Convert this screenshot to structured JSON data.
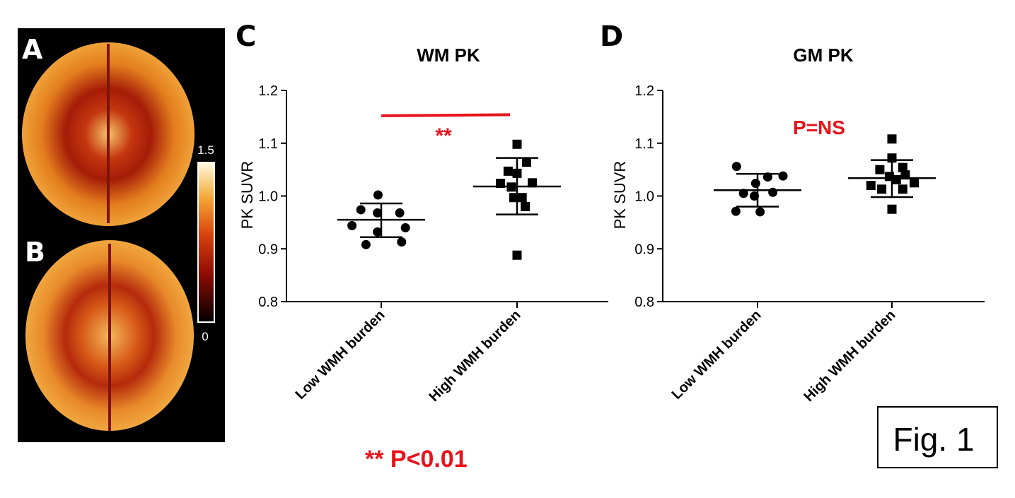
{
  "figure_label": "Fig. 1",
  "footnote": "** P<0.01",
  "panels": {
    "a": "A",
    "b": "B",
    "c": "C",
    "d": "D"
  },
  "colorbar": {
    "max_label": "1.5",
    "min_label": "0",
    "colormap": "hot"
  },
  "colors": {
    "significance": "#e8121b",
    "data": "#000000"
  },
  "chart_data": [
    {
      "type": "scatter",
      "panel": "C",
      "title": "WM PK",
      "ylabel": "PK SUVR",
      "xlabel": "",
      "ylim": [
        0.8,
        1.2
      ],
      "yticks": [
        0.8,
        0.9,
        1.0,
        1.1,
        1.2
      ],
      "ytick_labels": [
        "0.8",
        "0.9",
        "1.0",
        "1.1",
        "1.2"
      ],
      "categories": [
        "Low WMH burden",
        "High WMH burden"
      ],
      "series": [
        {
          "name": "Low WMH burden",
          "marker": "circle",
          "points": [
            {
              "dx": -0.05,
              "y": 1.002
            },
            {
              "dx": -0.32,
              "y": 0.974
            },
            {
              "dx": -0.06,
              "y": 0.968
            },
            {
              "dx": 0.29,
              "y": 0.968
            },
            {
              "dx": -0.46,
              "y": 0.944
            },
            {
              "dx": 0.38,
              "y": 0.94
            },
            {
              "dx": -0.06,
              "y": 0.932
            },
            {
              "dx": 0.32,
              "y": 0.913
            },
            {
              "dx": -0.24,
              "y": 0.908
            }
          ],
          "mean": 0.955,
          "err_low": 0.922,
          "err_high": 0.986
        },
        {
          "name": "High WMH burden",
          "marker": "square",
          "points": [
            {
              "dx": 0.0,
              "y": 1.098
            },
            {
              "dx": 0.15,
              "y": 1.064
            },
            {
              "dx": -0.14,
              "y": 1.047
            },
            {
              "dx": 0.0,
              "y": 1.043
            },
            {
              "dx": -0.26,
              "y": 1.024
            },
            {
              "dx": 0.24,
              "y": 1.025
            },
            {
              "dx": -0.09,
              "y": 1.017
            },
            {
              "dx": -0.05,
              "y": 0.997
            },
            {
              "dx": 0.08,
              "y": 0.997
            },
            {
              "dx": 0.13,
              "y": 0.98
            },
            {
              "dx": 0.0,
              "y": 0.888
            }
          ],
          "mean": 1.018,
          "err_low": 0.965,
          "err_high": 1.072
        }
      ],
      "annotation": {
        "text": "**",
        "line_y_start": 1.152,
        "line_y_end": 1.154
      }
    },
    {
      "type": "scatter",
      "panel": "D",
      "title": "GM PK",
      "ylabel": "PK SUVR",
      "xlabel": "",
      "ylim": [
        0.8,
        1.2
      ],
      "yticks": [
        0.8,
        0.9,
        1.0,
        1.1,
        1.2
      ],
      "ytick_labels": [
        "0.8",
        "0.9",
        "1.0",
        "1.1",
        "1.2"
      ],
      "categories": [
        "Low WMH burden",
        "High WMH burden"
      ],
      "series": [
        {
          "name": "Low WMH burden",
          "marker": "circle",
          "points": [
            {
              "dx": -0.33,
              "y": 1.056
            },
            {
              "dx": 0.4,
              "y": 1.038
            },
            {
              "dx": 0.16,
              "y": 1.036
            },
            {
              "dx": -0.03,
              "y": 1.024
            },
            {
              "dx": -0.22,
              "y": 1.005
            },
            {
              "dx": 0.24,
              "y": 1.007
            },
            {
              "dx": -0.05,
              "y": 1.0
            },
            {
              "dx": -0.34,
              "y": 0.971
            },
            {
              "dx": 0.04,
              "y": 0.97
            }
          ],
          "mean": 1.011,
          "err_low": 0.98,
          "err_high": 1.042
        },
        {
          "name": "High WMH burden",
          "marker": "square",
          "points": [
            {
              "dx": 0.0,
              "y": 1.108
            },
            {
              "dx": 0.0,
              "y": 1.072
            },
            {
              "dx": -0.19,
              "y": 1.05
            },
            {
              "dx": 0.17,
              "y": 1.054
            },
            {
              "dx": -0.04,
              "y": 1.037
            },
            {
              "dx": 0.21,
              "y": 1.04
            },
            {
              "dx": 0.07,
              "y": 1.031
            },
            {
              "dx": 0.35,
              "y": 1.025
            },
            {
              "dx": -0.33,
              "y": 1.02
            },
            {
              "dx": -0.16,
              "y": 1.013
            },
            {
              "dx": 0.17,
              "y": 1.013
            },
            {
              "dx": 0.0,
              "y": 0.975
            }
          ],
          "mean": 1.034,
          "err_low": 0.998,
          "err_high": 1.068
        }
      ],
      "annotation": {
        "text": "P=NS"
      }
    }
  ]
}
